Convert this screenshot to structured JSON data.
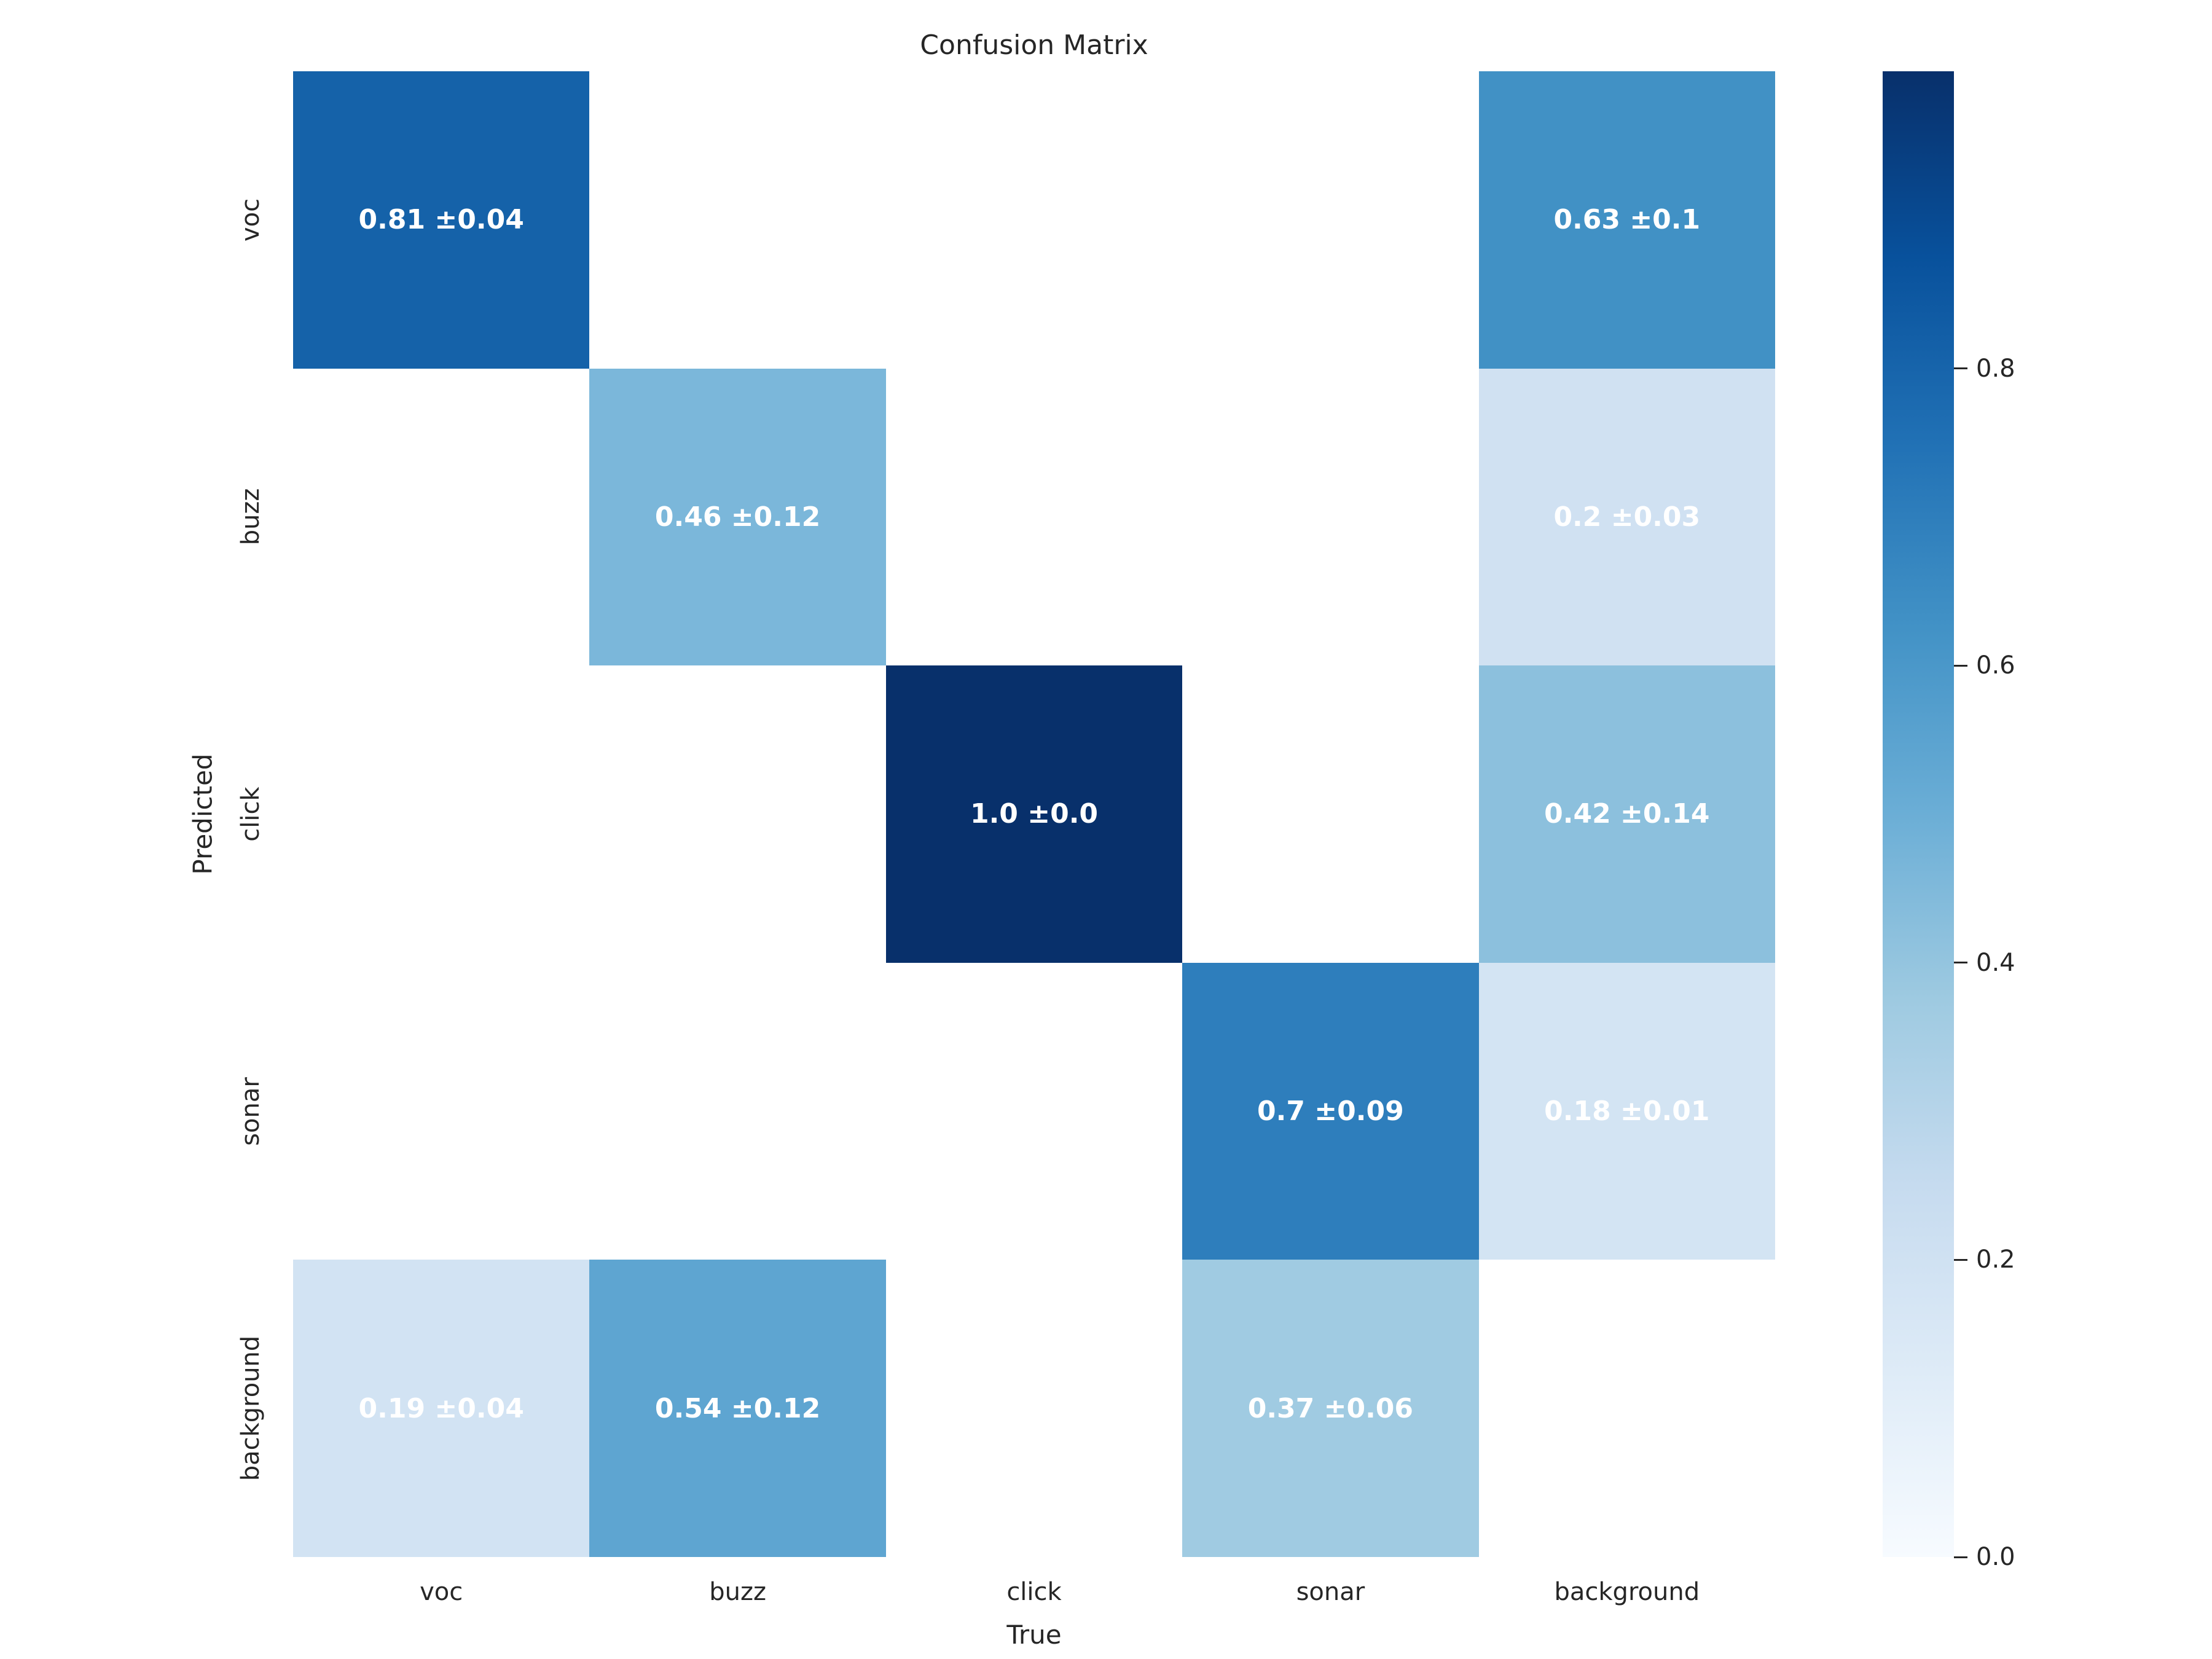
{
  "chart_data": {
    "type": "heatmap",
    "title": "Confusion Matrix",
    "xlabel": "True",
    "ylabel": "Predicted",
    "colormap": "Blues",
    "x_categories": [
      "voc",
      "buzz",
      "click",
      "sonar",
      "background"
    ],
    "y_categories": [
      "voc",
      "buzz",
      "click",
      "sonar",
      "background"
    ],
    "matrix": [
      [
        {
          "label": "0.81 ±0.04",
          "value": 0.81,
          "std": 0.04,
          "color": "#1562a9"
        },
        null,
        null,
        null,
        {
          "label": "0.63 ±0.1",
          "value": 0.63,
          "std": 0.1,
          "color": "#4191c5"
        }
      ],
      [
        null,
        {
          "label": "0.46 ±0.12",
          "value": 0.46,
          "std": 0.12,
          "color": "#7bb7da"
        },
        null,
        null,
        {
          "label": "0.2 ±0.03",
          "value": 0.2,
          "std": 0.03,
          "color": "#d0e1f2"
        }
      ],
      [
        null,
        null,
        {
          "label": "1.0 ±0.0",
          "value": 1.0,
          "std": 0.0,
          "color": "#08306b"
        },
        null,
        {
          "label": "0.42 ±0.14",
          "value": 0.42,
          "std": 0.14,
          "color": "#8cc0dd"
        }
      ],
      [
        null,
        null,
        null,
        {
          "label": "0.7 ±0.09",
          "value": 0.7,
          "std": 0.09,
          "color": "#2e7ebc"
        },
        {
          "label": "0.18 ±0.01",
          "value": 0.18,
          "std": 0.01,
          "color": "#d3e4f3"
        }
      ],
      [
        {
          "label": "0.19 ±0.04",
          "value": 0.19,
          "std": 0.04,
          "color": "#d2e3f3"
        },
        {
          "label": "0.54 ±0.12",
          "value": 0.54,
          "std": 0.12,
          "color": "#5ea5d1"
        },
        null,
        {
          "label": "0.37 ±0.06",
          "value": 0.37,
          "std": 0.06,
          "color": "#a0cbe2"
        },
        null
      ]
    ],
    "empty_cell_color": "#ffffff",
    "annotation_text_color": "#ffffff",
    "colorbar": {
      "min": 0.0,
      "max": 1.0,
      "ticks": [
        {
          "label": "0.8",
          "value": 0.8
        },
        {
          "label": "0.6",
          "value": 0.6
        },
        {
          "label": "0.4",
          "value": 0.4
        },
        {
          "label": "0.2",
          "value": 0.2
        },
        {
          "label": "0.0",
          "value": 0.0
        }
      ]
    }
  }
}
